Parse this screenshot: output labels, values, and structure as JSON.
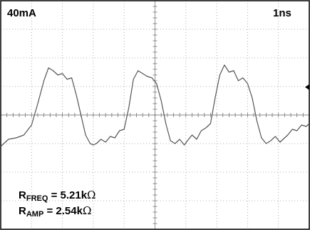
{
  "scope": {
    "vertical_scale": "40mA",
    "time_scale": "1ns",
    "resistors": [
      {
        "prefix": "R",
        "subscript": "FREQ",
        "value": " = 5.21k",
        "unit": "Ω"
      },
      {
        "prefix": "R",
        "subscript": "AMP",
        "value": " = 2.54k",
        "unit": "Ω"
      }
    ]
  },
  "chart_data": {
    "type": "line",
    "title": "",
    "xlabel": "",
    "ylabel": "",
    "x_divisions": 10,
    "y_divisions": 8,
    "xlim": [
      0,
      10
    ],
    "ylim": [
      -4,
      4
    ],
    "grid": true,
    "trace_color": "#555555",
    "series": [
      {
        "x": [
          0,
          0.25,
          0.5,
          0.75,
          1.0,
          1.2,
          1.4,
          1.55,
          1.7,
          1.85,
          2.0,
          2.15,
          2.3,
          2.45,
          2.6,
          2.75,
          2.9,
          3.0,
          3.1,
          3.25,
          3.4,
          3.55,
          3.7,
          3.85,
          4.0,
          4.15,
          4.3,
          4.45,
          4.6,
          4.75,
          4.9,
          5.05,
          5.2,
          5.35,
          5.5,
          5.65,
          5.8,
          5.95,
          6.05,
          6.2,
          6.35,
          6.5,
          6.65,
          6.8,
          6.95,
          7.1,
          7.25,
          7.4,
          7.55,
          7.7,
          7.85,
          8.0,
          8.15,
          8.3,
          8.45,
          8.6,
          8.75,
          8.9,
          9.05,
          9.15,
          9.3,
          9.45,
          9.6,
          9.75,
          9.9,
          10.0
        ],
        "y": [
          -1.1,
          -0.85,
          -0.8,
          -0.7,
          -0.35,
          0.4,
          1.2,
          1.65,
          1.55,
          1.4,
          1.45,
          1.25,
          1.3,
          0.7,
          0.0,
          -0.7,
          -1.0,
          -1.05,
          -1.0,
          -0.85,
          -0.95,
          -0.75,
          -0.8,
          -0.55,
          -0.5,
          0.25,
          1.25,
          1.55,
          1.45,
          1.35,
          1.3,
          1.1,
          0.5,
          -0.3,
          -0.9,
          -1.0,
          -0.85,
          -1.05,
          -0.9,
          -0.7,
          -0.85,
          -0.55,
          -0.45,
          -0.3,
          0.6,
          1.4,
          1.75,
          1.5,
          1.55,
          1.2,
          1.3,
          1.1,
          0.6,
          -0.2,
          -0.8,
          -1.0,
          -0.9,
          -0.75,
          -0.95,
          -0.85,
          -0.7,
          -0.5,
          -0.55,
          -0.35,
          -0.4,
          -0.3
        ]
      }
    ],
    "annotations": [
      "trigger-marker-right"
    ]
  }
}
